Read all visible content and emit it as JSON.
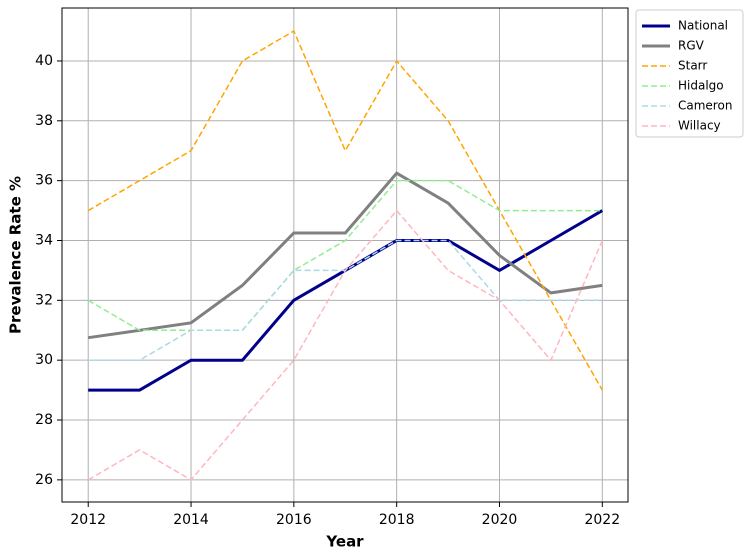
{
  "chart_data": {
    "type": "line",
    "x_label": "Year",
    "y_label": "Prevalence Rate %",
    "x": [
      2012,
      2013,
      2014,
      2015,
      2016,
      2017,
      2018,
      2019,
      2020,
      2021,
      2022
    ],
    "series": [
      {
        "name": "National",
        "color": "#00008b",
        "dashed": false,
        "width": 3,
        "values": [
          29,
          29,
          30,
          30,
          32,
          33,
          34,
          34,
          33,
          34,
          35
        ]
      },
      {
        "name": "RGV",
        "color": "#808080",
        "dashed": false,
        "width": 3,
        "values": [
          30.75,
          31,
          31.25,
          32.5,
          34.25,
          34.25,
          36.25,
          35.25,
          33.5,
          32.25,
          32.5
        ]
      },
      {
        "name": "Starr",
        "color": "#ffa500",
        "dashed": true,
        "width": 1.5,
        "values": [
          35,
          36,
          37,
          40,
          41,
          37,
          40,
          38,
          35,
          32,
          29
        ]
      },
      {
        "name": "Hidalgo",
        "color": "#90ee90",
        "dashed": true,
        "width": 1.5,
        "values": [
          32,
          31,
          31,
          31,
          33,
          34,
          36,
          36,
          35,
          35,
          35
        ]
      },
      {
        "name": "Cameron",
        "color": "#add8e6",
        "dashed": true,
        "width": 1.5,
        "values": [
          30,
          30,
          31,
          31,
          33,
          33,
          34,
          34,
          32,
          32,
          32
        ]
      },
      {
        "name": "Willacy",
        "color": "#ffb6c1",
        "dashed": true,
        "width": 1.5,
        "values": [
          26,
          27,
          26,
          28,
          30,
          33,
          35,
          33,
          32,
          30,
          34
        ]
      }
    ],
    "xlim": [
      2011.49,
      2022.5
    ],
    "xticks": [
      2012,
      2014,
      2016,
      2018,
      2020,
      2022
    ],
    "ylim": [
      25.26,
      41.77
    ],
    "yticks": [
      26,
      28,
      30,
      32,
      34,
      36,
      38,
      40
    ],
    "grid": true,
    "legend": "outside-upper-right"
  }
}
